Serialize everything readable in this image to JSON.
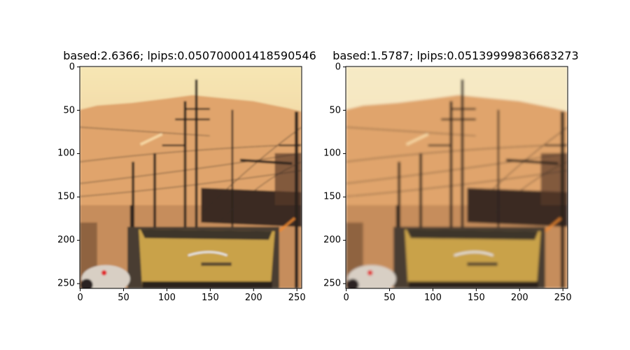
{
  "panels": [
    {
      "title": "based:2.6366; lpips:0.050700001418590546",
      "variant": "A",
      "x_ticks": [
        "0",
        "50",
        "100",
        "150",
        "200",
        "250"
      ],
      "y_ticks": [
        "0",
        "50",
        "100",
        "150",
        "200",
        "250"
      ]
    },
    {
      "title": "based:1.5787; lpips:0.05139999836683273",
      "variant": "B",
      "x_ticks": [
        "0",
        "50",
        "100",
        "150",
        "200",
        "250"
      ],
      "y_ticks": [
        "0",
        "50",
        "100",
        "150",
        "200",
        "250"
      ]
    }
  ],
  "colors": {
    "sky_top": "#f6e6b4",
    "sky_bottom": "#e8b880",
    "mountain": "#e0a46c",
    "roof": "#3a2a22",
    "truck_yellow": "#c9a24a",
    "pole": "#2c241e",
    "tail_light": "#e0282a"
  }
}
